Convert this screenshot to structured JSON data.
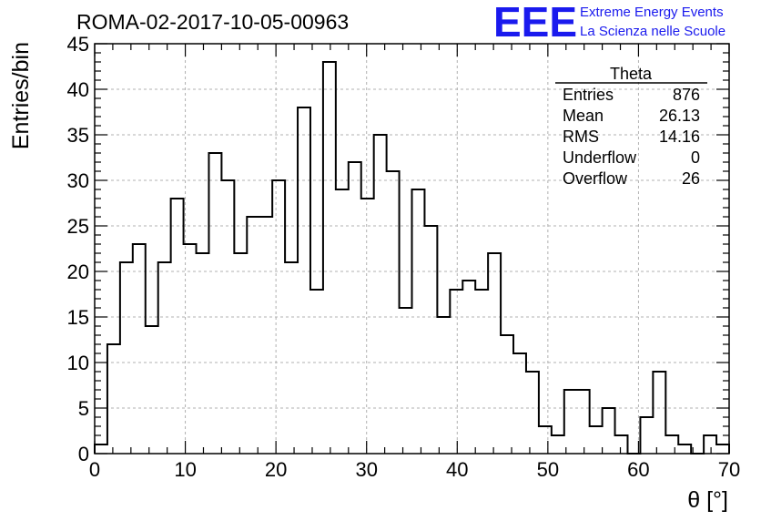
{
  "chart_data": {
    "type": "bar",
    "title": "ROMA-02-2017-10-05-00963",
    "xlabel": "θ [°]",
    "ylabel": "Entries/bin",
    "xlim": [
      0,
      70
    ],
    "ylim": [
      0,
      45
    ],
    "bin_width": 1.4,
    "x_ticks": [
      0,
      10,
      20,
      30,
      40,
      50,
      60,
      70
    ],
    "y_ticks": [
      0,
      5,
      10,
      15,
      20,
      25,
      30,
      35,
      40,
      45
    ],
    "grid": true,
    "values": [
      1,
      12,
      21,
      23,
      14,
      21,
      28,
      23,
      22,
      33,
      30,
      22,
      26,
      26,
      30,
      21,
      38,
      18,
      43,
      29,
      32,
      28,
      35,
      31,
      16,
      29,
      25,
      15,
      18,
      19,
      18,
      22,
      13,
      11,
      9,
      3,
      2,
      7,
      7,
      3,
      5,
      2,
      0,
      4,
      9,
      2,
      1,
      0,
      2,
      1
    ],
    "stats_box": {
      "title": "Theta",
      "rows": [
        {
          "label": "Entries",
          "value": "876"
        },
        {
          "label": "Mean",
          "value": "26.13"
        },
        {
          "label": "RMS",
          "value": "14.16"
        },
        {
          "label": "Underflow",
          "value": "0"
        },
        {
          "label": "Overflow",
          "value": "26"
        }
      ],
      "placement": "top-right"
    }
  },
  "logo": {
    "mark": "EEE",
    "line1": "Extreme Energy Events",
    "line2": "La Scienza nelle Scuole",
    "color": "#1a1aee"
  },
  "colors": {
    "line": "#000000",
    "grid": "#b0b0b0"
  }
}
